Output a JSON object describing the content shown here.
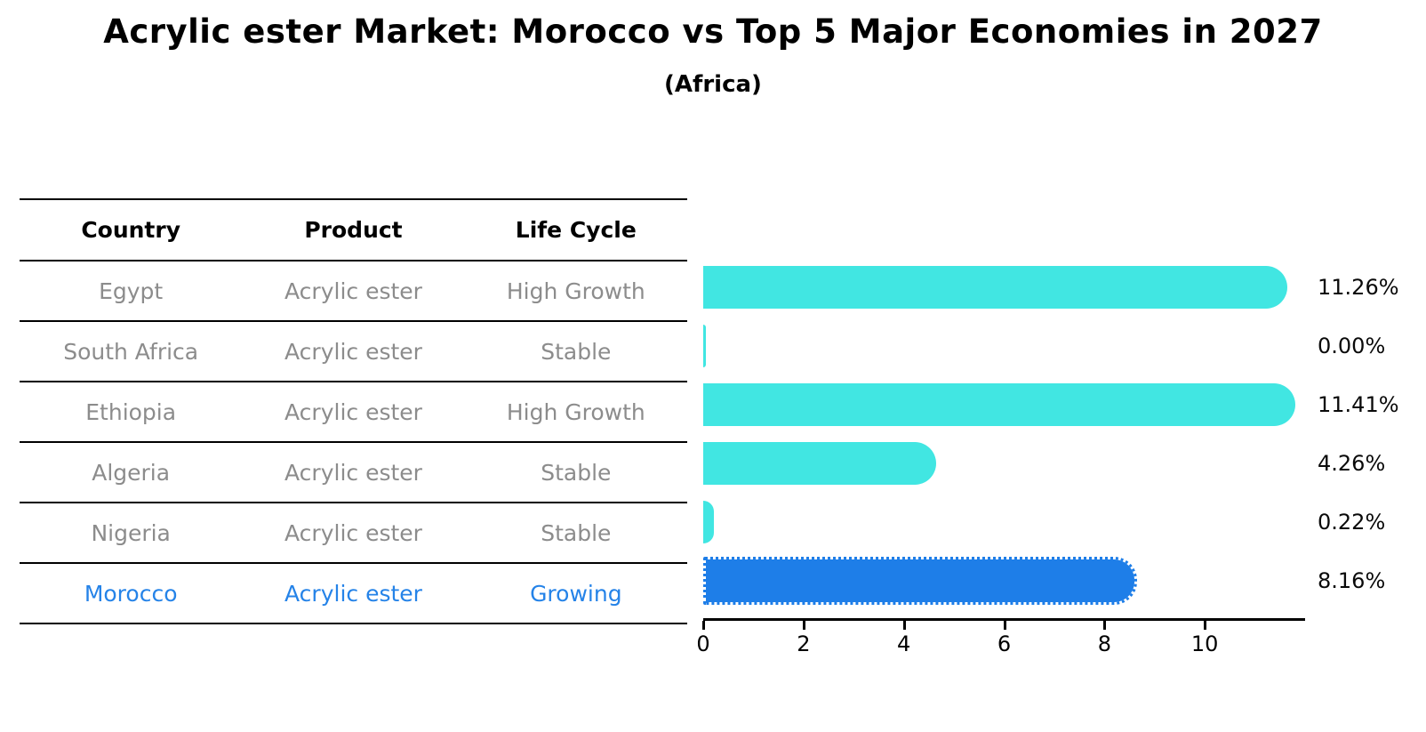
{
  "chart": {
    "title": "Acrylic ester Market: Morocco vs Top 5 Major Economies in 2027",
    "subtitle": "(Africa)"
  },
  "table": {
    "headers": [
      "Country",
      "Product",
      "Life Cycle"
    ],
    "rows": [
      {
        "country": "Egypt",
        "product": "Acrylic ester",
        "life_cycle": "High Growth",
        "highlight": false
      },
      {
        "country": "South Africa",
        "product": "Acrylic ester",
        "life_cycle": "Stable",
        "highlight": false
      },
      {
        "country": "Ethiopia",
        "product": "Acrylic ester",
        "life_cycle": "High Growth",
        "highlight": false
      },
      {
        "country": "Algeria",
        "product": "Acrylic ester",
        "life_cycle": "Stable",
        "highlight": false
      },
      {
        "country": "Nigeria",
        "product": "Acrylic ester",
        "life_cycle": "Stable",
        "highlight": false
      },
      {
        "country": "Morocco",
        "product": "Acrylic ester",
        "life_cycle": "Growing",
        "highlight": true
      }
    ]
  },
  "chart_data": {
    "type": "bar",
    "orientation": "horizontal",
    "title": "Acrylic ester Market: Morocco vs Top 5 Major Economies in 2027",
    "subtitle": "(Africa)",
    "categories": [
      "Egypt",
      "South Africa",
      "Ethiopia",
      "Algeria",
      "Nigeria",
      "Morocco"
    ],
    "values": [
      11.26,
      0.0,
      11.41,
      4.26,
      0.22,
      8.16
    ],
    "value_labels": [
      "11.26%",
      "0.00%",
      "11.41%",
      "4.26%",
      "0.22%",
      "8.16%"
    ],
    "xlabel": "",
    "ylabel": "",
    "xticks": [
      0,
      2,
      4,
      6,
      8,
      10
    ],
    "xlim": [
      0,
      12
    ],
    "grid": false,
    "legend": null,
    "highlight_index": 5
  },
  "colors": {
    "bar": "#41e6e2",
    "highlight_bar": "#1e7ee8",
    "highlight_text": "#2583e8",
    "row_text": "#8c8c8c",
    "header_text": "#000000",
    "axis": "#000000"
  }
}
